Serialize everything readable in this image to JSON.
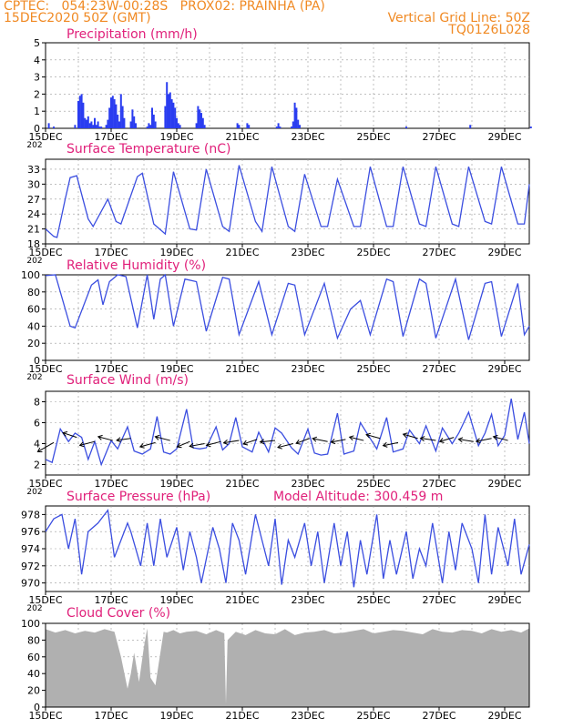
{
  "header": {
    "line1_left": "CPTEC:   054:23W-00:28S   PROX02: PRAINHA (PA)",
    "line2_left": "15DEC2020 50Z (GMT)",
    "line2_right": "Vertical Grid Line: 50Z",
    "line3_right": "TQ0126L028"
  },
  "colors": {
    "header": "#f08a24",
    "title": "#e0207a",
    "line": "#3b4ee0",
    "bar": "#2a3df0",
    "cloud": "#b0b0b0",
    "grid": "#9a9a9a"
  },
  "x_ticks": [
    "15DEC",
    "17DEC",
    "19DEC",
    "21DEC",
    "23DEC",
    "25DEC",
    "27DEC",
    "29DEC"
  ],
  "year_fragment": "202",
  "chart_data": [
    {
      "type": "bar",
      "title": "Precipitation (mm/h)",
      "ylim": [
        0,
        5
      ],
      "yticks": [
        "0",
        "1",
        "2",
        "3",
        "4",
        "5"
      ],
      "x_unit": "days since 15DEC 00Z",
      "x": [
        0.1,
        0.25,
        0.9,
        1.0,
        1.05,
        1.1,
        1.15,
        1.2,
        1.25,
        1.3,
        1.35,
        1.4,
        1.45,
        1.5,
        1.55,
        1.6,
        1.65,
        1.7,
        1.85,
        1.9,
        1.95,
        2.0,
        2.05,
        2.1,
        2.15,
        2.2,
        2.25,
        2.3,
        2.35,
        2.4,
        2.6,
        2.65,
        2.7,
        2.75,
        3.1,
        3.15,
        3.2,
        3.25,
        3.3,
        3.35,
        3.65,
        3.7,
        3.75,
        3.8,
        3.85,
        3.9,
        3.95,
        4.0,
        4.05,
        4.1,
        4.6,
        4.65,
        4.7,
        4.75,
        4.8,
        4.85,
        5.85,
        5.9,
        6.15,
        6.2,
        7.05,
        7.1,
        7.15,
        7.5,
        7.55,
        7.6,
        7.65,
        7.7,
        7.75,
        11.0,
        12.95,
        14.8
      ],
      "values": [
        0.3,
        0.1,
        0.2,
        1.6,
        1.9,
        2.0,
        1.5,
        0.6,
        0.5,
        0.7,
        0.3,
        0.4,
        0.2,
        0.6,
        0.2,
        0.4,
        0.1,
        0.1,
        0.2,
        0.5,
        1.2,
        1.8,
        1.9,
        1.7,
        1.4,
        0.8,
        0.4,
        2.0,
        1.3,
        0.6,
        0.4,
        1.1,
        0.7,
        0.3,
        0.1,
        0.3,
        0.2,
        1.2,
        0.8,
        0.4,
        1.3,
        2.7,
        2.0,
        2.1,
        1.7,
        1.5,
        1.2,
        0.6,
        0.3,
        0.2,
        0.3,
        1.3,
        1.1,
        0.9,
        0.6,
        0.2,
        0.3,
        0.2,
        0.3,
        0.2,
        0.1,
        0.3,
        0.1,
        0.1,
        0.4,
        1.5,
        1.2,
        0.5,
        0.2,
        0.1,
        0.2,
        0.1
      ]
    },
    {
      "type": "line",
      "title": "Surface Temperature (nC)",
      "ylim": [
        18,
        35
      ],
      "yticks": [
        "18",
        "21",
        "24",
        "27",
        "30",
        "33"
      ],
      "x_unit": "days since 15DEC 00Z",
      "x": [
        0,
        0.25,
        0.35,
        0.6,
        0.75,
        0.95,
        1.3,
        1.45,
        1.9,
        2.15,
        2.3,
        2.8,
        2.95,
        3.3,
        3.65,
        3.9,
        4.4,
        4.6,
        4.9,
        5.4,
        5.6,
        5.9,
        6.4,
        6.6,
        6.9,
        7.4,
        7.6,
        7.9,
        8.4,
        8.6,
        8.9,
        9.4,
        9.6,
        9.9,
        10.4,
        10.6,
        10.9,
        11.4,
        11.6,
        11.9,
        12.4,
        12.6,
        12.9,
        13.4,
        13.6,
        13.9,
        14.4,
        14.6,
        14.75
      ],
      "values": [
        21,
        19.5,
        19.3,
        27,
        31.3,
        31.7,
        23,
        21.5,
        27,
        22.5,
        22,
        31.5,
        32.2,
        22,
        20,
        32.5,
        21,
        20.8,
        33,
        21.5,
        20.5,
        33.8,
        22.5,
        20.5,
        33.5,
        21.5,
        20.5,
        32,
        21.5,
        21.5,
        31,
        21.5,
        21.5,
        33.5,
        21.5,
        21.5,
        33.5,
        22,
        21.5,
        33.5,
        22,
        21.5,
        33.5,
        22.5,
        22,
        33.5,
        22,
        22,
        30
      ]
    },
    {
      "type": "line",
      "title": "Relative Humidity (%)",
      "ylim": [
        0,
        100
      ],
      "yticks": [
        "0",
        "20",
        "40",
        "60",
        "80",
        "100"
      ],
      "x_unit": "days since 15DEC 00Z",
      "x": [
        0,
        0.3,
        0.75,
        0.9,
        1.4,
        1.6,
        1.75,
        1.95,
        2.2,
        2.45,
        2.8,
        3.1,
        3.3,
        3.5,
        3.65,
        3.9,
        4.25,
        4.6,
        4.9,
        5.4,
        5.6,
        5.9,
        6.5,
        6.9,
        7.4,
        7.6,
        7.9,
        8.5,
        8.9,
        9.3,
        9.6,
        9.9,
        10.4,
        10.6,
        10.9,
        11.4,
        11.6,
        11.9,
        12.5,
        12.9,
        13.4,
        13.6,
        13.9,
        14.4,
        14.6,
        14.75
      ],
      "values": [
        99,
        100,
        40,
        38,
        88,
        94,
        65,
        92,
        100,
        98,
        38,
        100,
        48,
        95,
        100,
        40,
        95,
        92,
        34,
        97,
        95,
        30,
        92,
        30,
        90,
        88,
        30,
        90,
        26,
        60,
        70,
        30,
        95,
        92,
        28,
        95,
        90,
        26,
        95,
        24,
        90,
        92,
        28,
        90,
        30,
        40
      ]
    },
    {
      "type": "line",
      "title": "Surface Wind (m/s)",
      "ylim": [
        1,
        9
      ],
      "yticks": [
        "2",
        "4",
        "6",
        "8"
      ],
      "x_unit": "days since 15DEC 00Z",
      "x": [
        0,
        0.2,
        0.45,
        0.7,
        0.9,
        1.1,
        1.3,
        1.5,
        1.7,
        2.0,
        2.2,
        2.5,
        2.7,
        2.95,
        3.2,
        3.4,
        3.6,
        3.8,
        4.0,
        4.3,
        4.5,
        4.7,
        4.9,
        5.2,
        5.4,
        5.6,
        5.8,
        6.0,
        6.3,
        6.5,
        6.8,
        7.0,
        7.2,
        7.5,
        7.7,
        8.0,
        8.2,
        8.4,
        8.6,
        8.9,
        9.1,
        9.4,
        9.6,
        9.9,
        10.1,
        10.4,
        10.6,
        10.9,
        11.1,
        11.4,
        11.6,
        11.9,
        12.1,
        12.4,
        12.6,
        12.9,
        13.2,
        13.4,
        13.6,
        13.8,
        14.0,
        14.2,
        14.4,
        14.6,
        14.75
      ],
      "values": [
        2.5,
        2.2,
        5.4,
        4.2,
        5.0,
        4.6,
        2.5,
        4.2,
        2.0,
        4.3,
        3.5,
        5.6,
        3.3,
        3.0,
        3.5,
        6.6,
        3.2,
        3.0,
        3.5,
        7.3,
        3.6,
        3.5,
        3.6,
        5.6,
        3.4,
        4.0,
        6.5,
        3.7,
        3.2,
        5.1,
        3.2,
        5.5,
        5.0,
        3.6,
        3.0,
        5.4,
        3.1,
        2.9,
        3.0,
        6.9,
        3.0,
        3.3,
        6.0,
        4.5,
        3.5,
        6.5,
        3.2,
        3.5,
        5.3,
        4.0,
        5.7,
        3.3,
        5.5,
        4.0,
        5.0,
        7.0,
        3.8,
        5.0,
        6.8,
        3.8,
        4.8,
        8.3,
        4.4,
        7.0,
        4.0
      ],
      "barb_x": [
        0.25,
        0.95,
        1.5,
        2.05,
        2.6,
        3.35,
        3.8,
        4.4,
        4.85,
        5.35,
        5.9,
        6.45,
        7.0,
        7.55,
        8.05,
        8.6,
        9.15,
        9.7,
        10.2,
        10.75,
        11.35,
        11.9,
        12.45,
        13.05,
        13.6,
        14.1
      ],
      "barb_y": [
        4.1,
        4.6,
        4.2,
        4.3,
        4.5,
        4.1,
        4.3,
        4.2,
        4.0,
        4.2,
        4.3,
        4.4,
        4.3,
        4.0,
        4.5,
        4.2,
        4.4,
        4.3,
        4.5,
        4.1,
        4.5,
        4.3,
        4.6,
        4.2,
        4.5,
        4.3
      ],
      "barb_u": [
        -4.2,
        -3.6,
        -3.9,
        -3.8,
        -3.7,
        -4.0,
        -3.9,
        -3.3,
        -3.9,
        -3.8,
        -4.0,
        -3.6,
        -3.9,
        -4.0,
        -3.5,
        -3.9,
        -3.8,
        -3.7,
        -3.6,
        -3.9,
        -3.8,
        -4.0,
        -3.7,
        -3.9,
        -4.0,
        -3.8
      ],
      "barb_v": [
        -2.4,
        1.2,
        -1.0,
        1.0,
        -0.5,
        -1.1,
        1.0,
        -1.4,
        -0.7,
        -1.0,
        -0.6,
        -1.2,
        -0.4,
        -1.0,
        -1.3,
        0.8,
        -0.7,
        0.9,
        1.0,
        -0.8,
        1.1,
        0.6,
        -1.1,
        0.6,
        -0.8,
        1.0
      ]
    },
    {
      "type": "line",
      "title": "Surface Pressure (hPa)",
      "annotation": "Model Altitude: 300.459 m",
      "ylim": [
        969,
        979
      ],
      "yticks": [
        "970",
        "972",
        "974",
        "976",
        "978"
      ],
      "x_unit": "days since 15DEC 00Z",
      "x": [
        0,
        0.25,
        0.5,
        0.7,
        0.9,
        1.1,
        1.3,
        1.6,
        1.9,
        2.1,
        2.3,
        2.5,
        2.6,
        2.9,
        3.1,
        3.3,
        3.5,
        3.7,
        4.0,
        4.2,
        4.4,
        4.6,
        4.75,
        5.1,
        5.3,
        5.5,
        5.7,
        5.9,
        6.1,
        6.4,
        6.6,
        6.8,
        7.0,
        7.2,
        7.4,
        7.6,
        7.9,
        8.1,
        8.3,
        8.5,
        8.8,
        9.0,
        9.2,
        9.4,
        9.6,
        9.8,
        10.1,
        10.3,
        10.5,
        10.7,
        11.0,
        11.2,
        11.4,
        11.6,
        11.8,
        12.1,
        12.3,
        12.5,
        12.7,
        13.0,
        13.2,
        13.4,
        13.6,
        13.8,
        14.1,
        14.3,
        14.5,
        14.75
      ],
      "values": [
        976,
        977.5,
        978,
        974,
        977.5,
        971,
        976,
        977,
        978.5,
        973,
        975,
        977,
        976,
        972,
        977,
        972,
        977.5,
        973,
        976.5,
        971.5,
        976,
        973,
        970,
        976.5,
        974,
        970,
        977,
        975,
        971,
        978,
        975,
        972,
        977.5,
        969.8,
        975,
        973,
        977,
        972,
        976,
        970,
        977,
        972,
        976,
        969.5,
        975,
        971,
        978,
        970.5,
        975,
        971,
        976,
        970.5,
        974,
        972,
        977,
        970,
        976,
        971.5,
        977,
        974,
        970,
        978,
        971,
        976.5,
        972,
        977.5,
        971,
        974.5
      ]
    },
    {
      "type": "area",
      "title": "Cloud Cover (%)",
      "ylim": [
        0,
        100
      ],
      "yticks": [
        "0",
        "20",
        "40",
        "60",
        "80",
        "100"
      ],
      "x_unit": "days since 15DEC 00Z",
      "x": [
        0,
        0.3,
        0.6,
        0.9,
        1.2,
        1.5,
        1.8,
        2.1,
        2.3,
        2.5,
        2.6,
        2.7,
        2.85,
        3.0,
        3.1,
        3.2,
        3.35,
        3.45,
        3.6,
        3.7,
        3.9,
        4.1,
        4.3,
        4.6,
        4.9,
        5.2,
        5.45,
        5.5,
        5.55,
        5.8,
        6.1,
        6.4,
        6.7,
        7.0,
        7.3,
        7.6,
        7.9,
        8.2,
        8.5,
        8.8,
        9.1,
        9.4,
        9.7,
        10.0,
        10.3,
        10.6,
        10.9,
        11.2,
        11.5,
        11.8,
        12.1,
        12.4,
        12.7,
        13.0,
        13.3,
        13.6,
        13.9,
        14.2,
        14.5,
        14.75
      ],
      "values": [
        93,
        89,
        92,
        88,
        91,
        89,
        93,
        90,
        60,
        22,
        40,
        65,
        30,
        72,
        94,
        35,
        26,
        52,
        90,
        89,
        92,
        88,
        90,
        91,
        87,
        92,
        88,
        4,
        80,
        90,
        86,
        92,
        88,
        87,
        93,
        86,
        89,
        90,
        92,
        88,
        89,
        91,
        93,
        88,
        90,
        92,
        91,
        89,
        87,
        93,
        90,
        89,
        92,
        91,
        88,
        93,
        90,
        92,
        89,
        94
      ]
    }
  ]
}
